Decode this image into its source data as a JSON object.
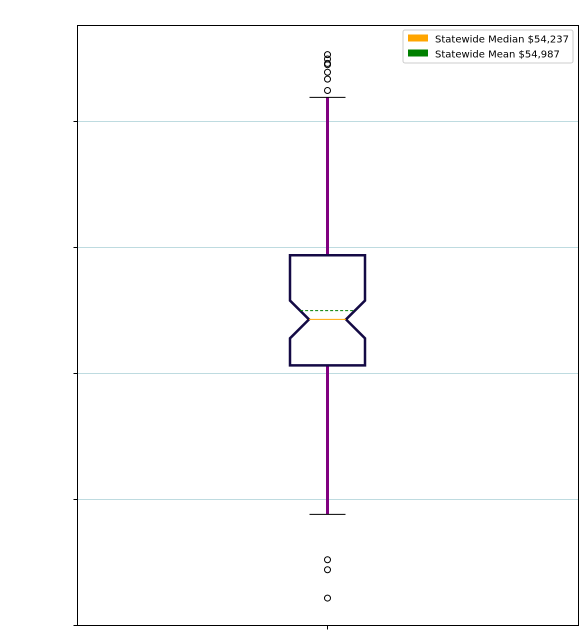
{
  "chart_data": {
    "type": "boxplot",
    "title": "",
    "xlabel": "",
    "ylabel": "",
    "notched": true,
    "ylim": [
      0,
      100
    ],
    "yticks": [
      0,
      20,
      40,
      60,
      80
    ],
    "grid": "horizontal",
    "legend_position": "top-right",
    "box": {
      "whisker_low": 17.5,
      "q1": 41.2,
      "median": 48.5,
      "mean": 49.9,
      "q3": 58.7,
      "whisker_high": 83.8,
      "notch_low": 45.5,
      "notch_high": 51.5,
      "outliers_high": [
        84.9,
        86.7,
        87.8,
        89.0,
        89.2,
        89.9,
        90.6
      ],
      "outliers_low": [
        4.2,
        8.7,
        10.3
      ]
    },
    "legend": [
      {
        "label": "Statewide Median $54,237",
        "color": "#ffa500"
      },
      {
        "label": "Statewide Mean $54,987",
        "color": "#008000"
      }
    ],
    "colors": {
      "box": "#140a45",
      "whisker": "#800080",
      "cap": "#000000",
      "median_line": "#ffa500",
      "mean_line": "#008000",
      "grid": "#a8cfd6"
    }
  }
}
